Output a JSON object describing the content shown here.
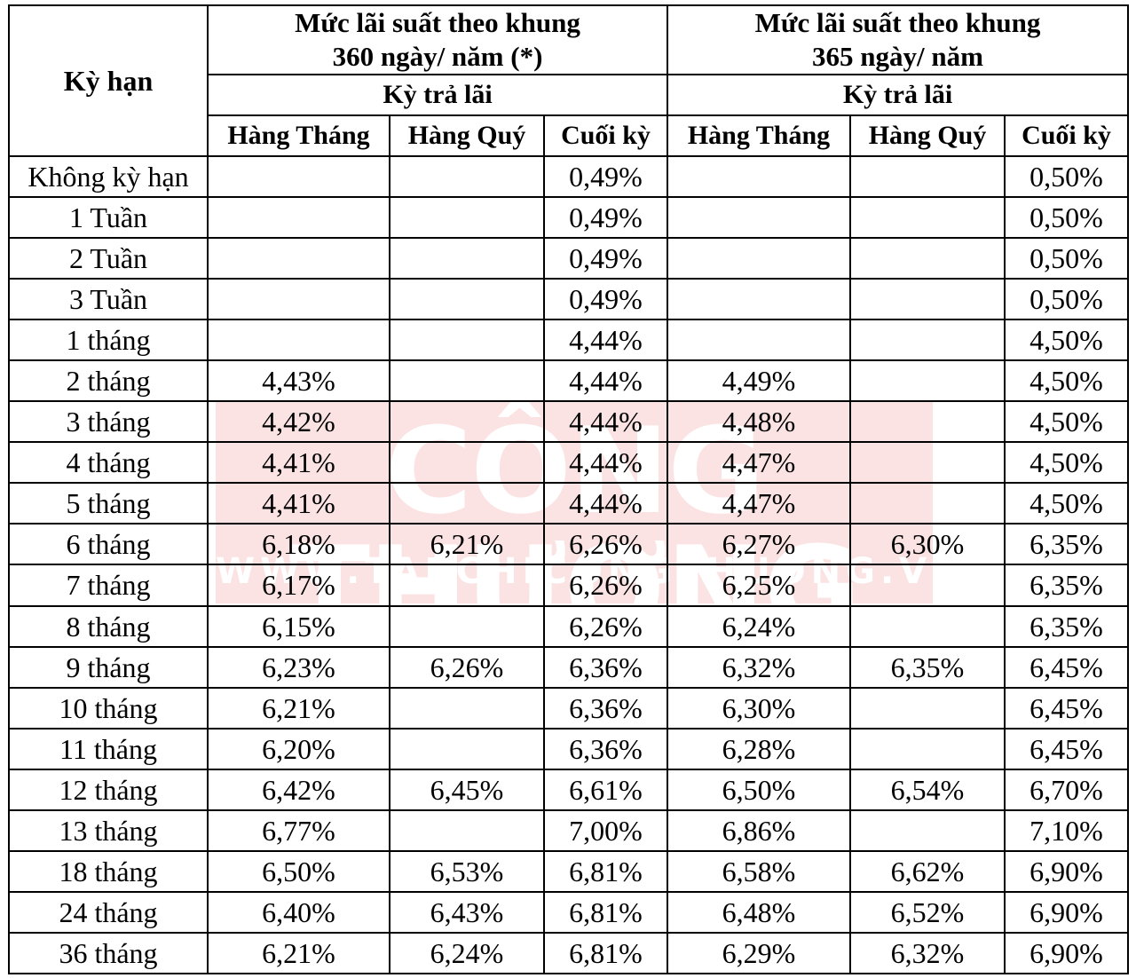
{
  "header": {
    "term_label": "Kỳ hạn",
    "group_360_line1": "Mức lãi suất theo khung",
    "group_360_line2": "360 ngày/ năm (*)",
    "group_365_line1": "Mức lãi suất theo khung",
    "group_365_line2": "365 ngày/ năm",
    "payment_period_360": "Kỳ trả lãi",
    "payment_period_365": "Kỳ trả lãi",
    "cols": [
      "Hàng Tháng",
      "Hàng Quý",
      "Cuối kỳ",
      "Hàng Tháng",
      "Hàng Quý",
      "Cuối kỳ"
    ]
  },
  "watermark": {
    "title": "CÔNG THƯƠNG",
    "url": "WWW.TAPCHICONGTHUONG.VN"
  },
  "rows": [
    {
      "term": "Không kỳ hạn",
      "v": [
        "",
        "",
        "0,49%",
        "",
        "",
        "0,50%"
      ]
    },
    {
      "term": "1 Tuần",
      "v": [
        "",
        "",
        "0,49%",
        "",
        "",
        "0,50%"
      ]
    },
    {
      "term": "2 Tuần",
      "v": [
        "",
        "",
        "0,49%",
        "",
        "",
        "0,50%"
      ]
    },
    {
      "term": "3 Tuần",
      "v": [
        "",
        "",
        "0,49%",
        "",
        "",
        "0,50%"
      ]
    },
    {
      "term": "1 tháng",
      "v": [
        "",
        "",
        "4,44%",
        "",
        "",
        "4,50%"
      ]
    },
    {
      "term": "2 tháng",
      "v": [
        "4,43%",
        "",
        "4,44%",
        "4,49%",
        "",
        "4,50%"
      ]
    },
    {
      "term": "3 tháng",
      "v": [
        "4,42%",
        "",
        "4,44%",
        "4,48%",
        "",
        "4,50%"
      ]
    },
    {
      "term": "4 tháng",
      "v": [
        "4,41%",
        "",
        "4,44%",
        "4,47%",
        "",
        "4,50%"
      ]
    },
    {
      "term": "5 tháng",
      "v": [
        "4,41%",
        "",
        "4,44%",
        "4,47%",
        "",
        "4,50%"
      ]
    },
    {
      "term": "6 tháng",
      "v": [
        "6,18%",
        "6,21%",
        "6,26%",
        "6,27%",
        "6,30%",
        "6,35%"
      ]
    },
    {
      "term": "7 tháng",
      "v": [
        "6,17%",
        "",
        "6,26%",
        "6,25%",
        "",
        "6,35%"
      ]
    },
    {
      "term": "8 tháng",
      "v": [
        "6,15%",
        "",
        "6,26%",
        "6,24%",
        "",
        "6,35%"
      ]
    },
    {
      "term": "9 tháng",
      "v": [
        "6,23%",
        "6,26%",
        "6,36%",
        "6,32%",
        "6,35%",
        "6,45%"
      ]
    },
    {
      "term": "10 tháng",
      "v": [
        "6,21%",
        "",
        "6,36%",
        "6,30%",
        "",
        "6,45%"
      ]
    },
    {
      "term": "11 tháng",
      "v": [
        "6,20%",
        "",
        "6,36%",
        "6,28%",
        "",
        "6,45%"
      ]
    },
    {
      "term": "12 tháng",
      "v": [
        "6,42%",
        "6,45%",
        "6,61%",
        "6,50%",
        "6,54%",
        "6,70%"
      ]
    },
    {
      "term": "13 tháng",
      "v": [
        "6,77%",
        "",
        "7,00%",
        "6,86%",
        "",
        "7,10%"
      ]
    },
    {
      "term": "18 tháng",
      "v": [
        "6,50%",
        "6,53%",
        "6,81%",
        "6,58%",
        "6,62%",
        "6,90%"
      ]
    },
    {
      "term": "24 tháng",
      "v": [
        "6,40%",
        "6,43%",
        "6,81%",
        "6,48%",
        "6,52%",
        "6,90%"
      ]
    },
    {
      "term": "36 tháng",
      "v": [
        "6,21%",
        "6,24%",
        "6,81%",
        "6,29%",
        "6,32%",
        "6,90%"
      ]
    }
  ]
}
